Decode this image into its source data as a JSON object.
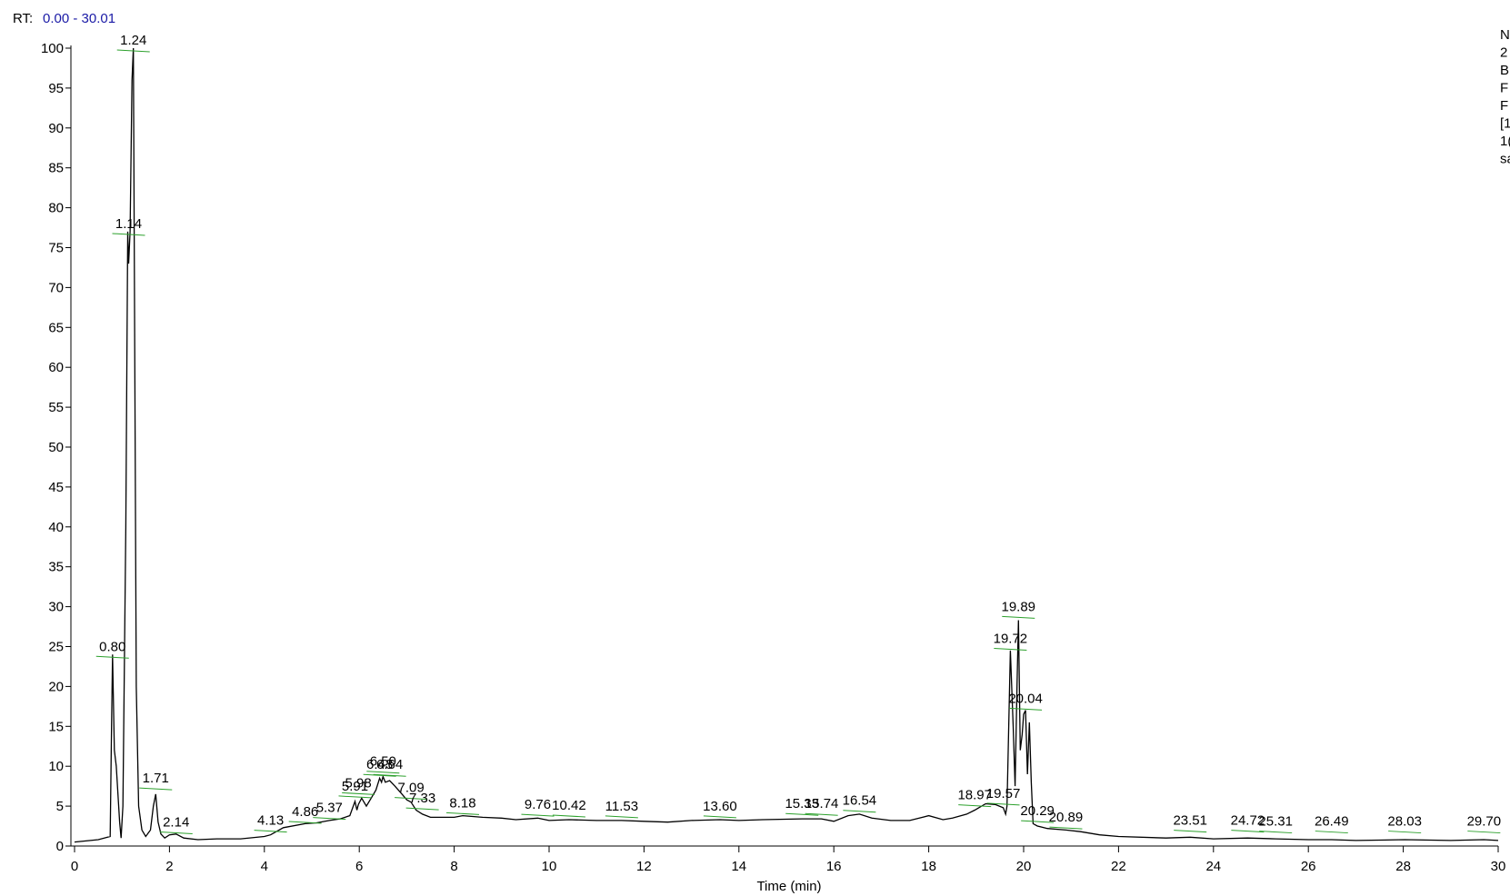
{
  "chart_data": {
    "type": "line",
    "rt_label": "RT:",
    "rt_range": "0.00 - 30.01",
    "side_text": [
      "N",
      "2",
      "B",
      "F",
      "F",
      "[1",
      "1(",
      "sa"
    ],
    "xlabel": "Time (min)",
    "color": "#000000",
    "baseline_color": "#2ca02c",
    "xlim": [
      0,
      30
    ],
    "ylim": [
      0,
      100
    ],
    "xticks": [
      0,
      2,
      4,
      6,
      8,
      10,
      12,
      14,
      16,
      18,
      20,
      22,
      24,
      26,
      28,
      30
    ],
    "yticks": [
      0,
      5,
      10,
      15,
      20,
      25,
      30,
      35,
      40,
      45,
      50,
      55,
      60,
      65,
      70,
      75,
      80,
      85,
      90,
      95,
      100
    ],
    "x": [
      0,
      0.5,
      0.75,
      0.78,
      0.8,
      0.84,
      0.88,
      0.95,
      0.98,
      1.02,
      1.08,
      1.12,
      1.14,
      1.17,
      1.21,
      1.24,
      1.27,
      1.3,
      1.35,
      1.42,
      1.5,
      1.6,
      1.66,
      1.71,
      1.76,
      1.82,
      1.9,
      2.0,
      2.14,
      2.3,
      2.6,
      3.0,
      3.5,
      4.0,
      4.13,
      4.4,
      4.86,
      5.1,
      5.37,
      5.6,
      5.8,
      5.91,
      5.95,
      5.98,
      6.05,
      6.15,
      6.25,
      6.35,
      6.43,
      6.47,
      6.5,
      6.55,
      6.64,
      6.75,
      6.9,
      7.0,
      7.09,
      7.2,
      7.33,
      7.5,
      8.0,
      8.18,
      8.6,
      9.0,
      9.3,
      9.76,
      10.0,
      10.42,
      11.0,
      11.53,
      12.0,
      12.5,
      13.0,
      13.6,
      14.0,
      14.5,
      15.33,
      15.74,
      16.0,
      16.3,
      16.54,
      16.8,
      17.2,
      17.6,
      17.8,
      18.0,
      18.3,
      18.5,
      18.8,
      18.97,
      19.2,
      19.4,
      19.57,
      19.62,
      19.65,
      19.72,
      19.78,
      19.82,
      19.86,
      19.89,
      19.93,
      19.97,
      20.0,
      20.04,
      20.08,
      20.12,
      20.16,
      20.2,
      20.29,
      20.5,
      20.89,
      21.2,
      21.6,
      22,
      23,
      23.51,
      24,
      24.72,
      25.31,
      26,
      26.49,
      27,
      28.03,
      29,
      29.7,
      30
    ],
    "values": [
      0.5,
      0.8,
      1.2,
      15,
      24,
      12,
      10,
      3,
      1,
      5,
      40,
      77,
      73,
      77,
      96,
      100,
      60,
      20,
      5,
      2,
      1.2,
      2,
      5,
      6.5,
      3,
      1.5,
      1,
      1.4,
      1.5,
      1.0,
      0.8,
      0.9,
      0.9,
      1.2,
      1.4,
      2.3,
      2.8,
      2.9,
      3.2,
      3.4,
      3.8,
      5.6,
      4.5,
      5.2,
      6,
      5,
      6,
      7,
      8.5,
      8,
      8.7,
      8,
      8.2,
      7.5,
      6.5,
      5.8,
      5.5,
      4.5,
      4.0,
      3.6,
      3.6,
      3.8,
      3.6,
      3.5,
      3.3,
      3.5,
      3.2,
      3.3,
      3.2,
      3.2,
      3.1,
      3.0,
      3.2,
      3.3,
      3.2,
      3.3,
      3.4,
      3.4,
      3.1,
      3.8,
      4.0,
      3.5,
      3.2,
      3.2,
      3.5,
      3.8,
      3.3,
      3.5,
      4.0,
      4.5,
      5.3,
      5.2,
      4.8,
      4.0,
      5,
      24.5,
      15,
      7.5,
      20,
      28.3,
      12,
      14,
      16.5,
      17,
      9,
      15.5,
      8,
      2.8,
      2.5,
      2.2,
      2.0,
      1.8,
      1.4,
      1.2,
      1.0,
      1.1,
      0.9,
      1.0,
      0.9,
      0.8,
      0.8,
      0.7,
      0.8,
      0.7,
      0.8,
      0.7
    ],
    "peaks": {
      "x": [
        0.8,
        1.14,
        1.24,
        1.71,
        2.14,
        4.13,
        4.86,
        5.37,
        5.91,
        5.98,
        6.43,
        6.5,
        6.64,
        7.09,
        7.33,
        8.18,
        9.76,
        10.42,
        11.53,
        13.6,
        15.33,
        15.74,
        16.54,
        18.97,
        19.57,
        19.72,
        19.89,
        20.04,
        20.29,
        20.89,
        23.51,
        24.72,
        25.31,
        26.49,
        28.03,
        29.7
      ],
      "y": [
        24,
        77,
        100,
        7.5,
        2,
        2.2,
        3.3,
        3.8,
        6.5,
        6.9,
        9.2,
        9.6,
        9.2,
        6.3,
        5,
        4.4,
        4.2,
        4.1,
        4.0,
        4.0,
        4.3,
        4.3,
        4.7,
        5.4,
        5.6,
        25,
        29,
        17.5,
        3.4,
        2.6,
        2.2,
        2.2,
        2.1,
        2.1,
        2.1,
        2.1
      ],
      "labels": [
        "0.80",
        "1.14",
        "1.24",
        "1.71",
        "2.14",
        "4.13",
        "4.86",
        "5.37",
        "5.91",
        "5.98",
        "6.43",
        "6.50",
        "6.64",
        "7.09",
        "7.33",
        "8.18",
        "9.76",
        "10.42",
        "11.53",
        "13.60",
        "15.33",
        "15.74",
        "16.54",
        "18.97",
        "19.57",
        "19.72",
        "19.89",
        "20.04",
        "20.29",
        "20.89",
        "23.51",
        "24.72",
        "25.31",
        "26.49",
        "28.03",
        "29.70"
      ]
    }
  }
}
